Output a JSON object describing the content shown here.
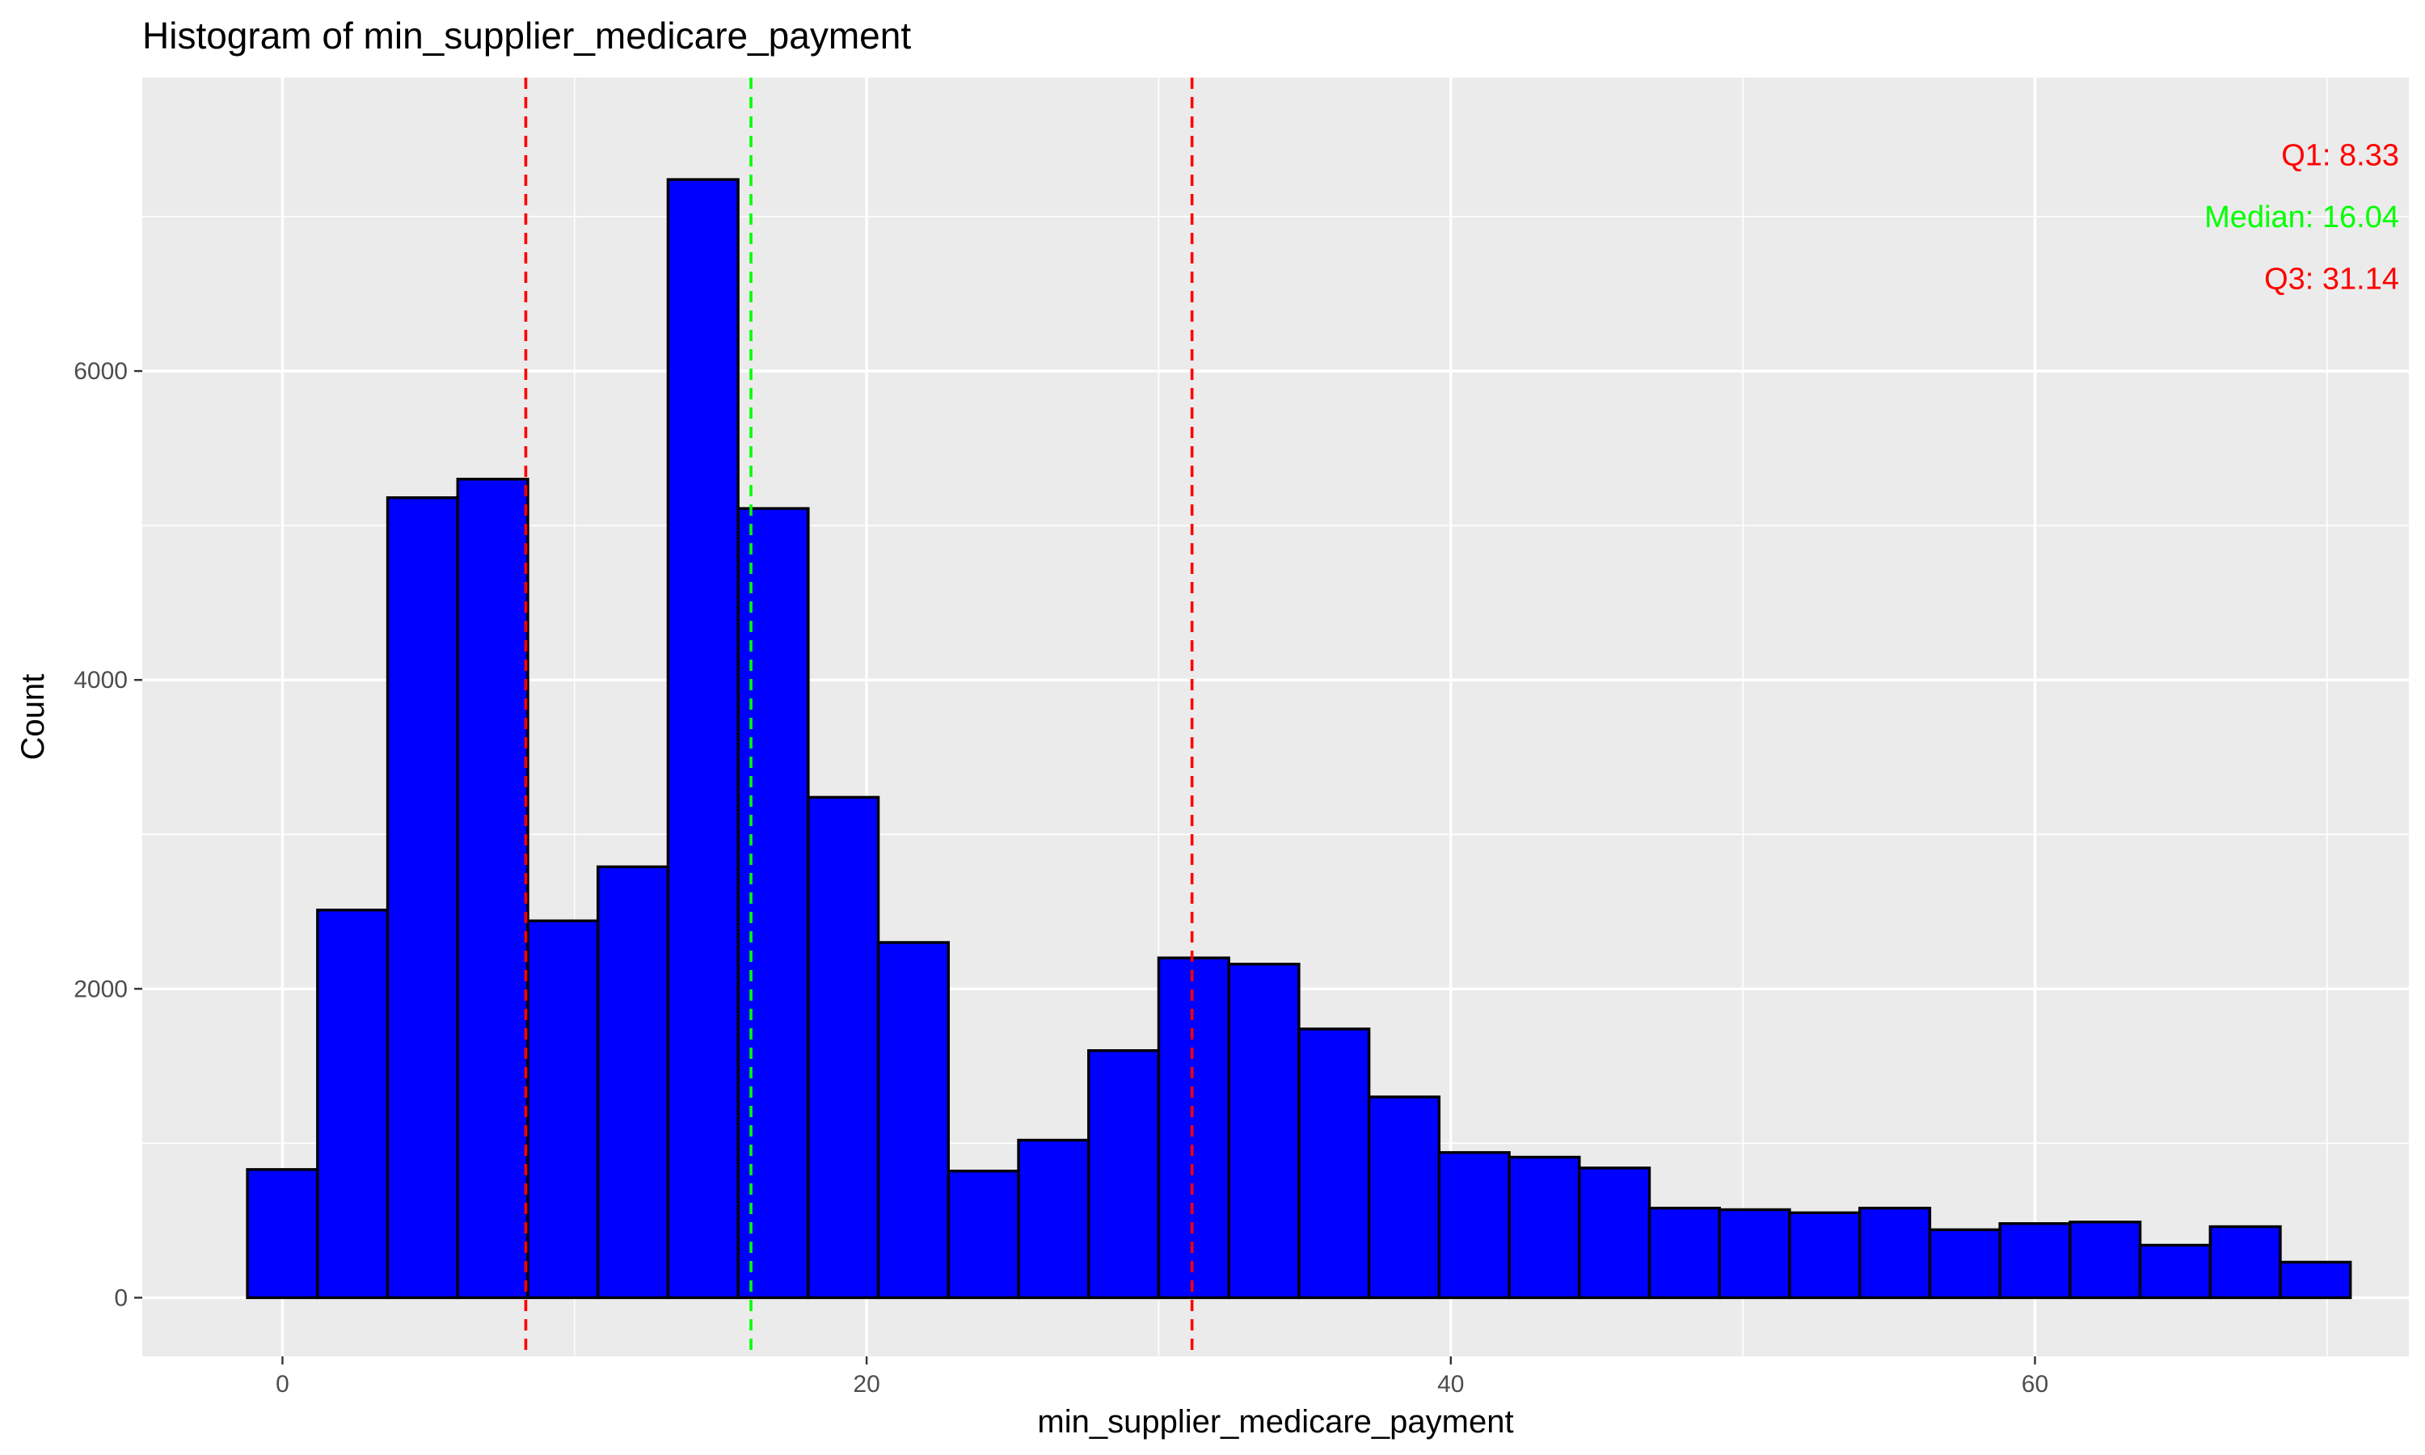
{
  "chart_data": {
    "type": "bar",
    "title": "Histogram of min_supplier_medicare_payment",
    "xlabel": "min_supplier_medicare_payment",
    "ylabel": "Count",
    "xlim": [
      -4.8,
      72.8
    ],
    "ylim": [
      -380,
      7900
    ],
    "x_ticks": [
      0,
      20,
      40,
      60
    ],
    "x_tick_labels": [
      "0",
      "20",
      "40",
      "60"
    ],
    "y_ticks": [
      0,
      2000,
      4000,
      6000
    ],
    "y_tick_labels": [
      "0",
      "2000",
      "4000",
      "6000"
    ],
    "grid": true,
    "colors": {
      "panel": "#ebebeb",
      "grid": "#ffffff",
      "bar_fill": "#0000ff",
      "bar_stroke": "#000000",
      "quartile_line": "#ff0000",
      "median_line": "#00ff00"
    },
    "bin_edges": [
      -1.2,
      1.2,
      3.6,
      6.0,
      8.4,
      10.8,
      13.2,
      15.6,
      18.0,
      20.4,
      22.8,
      25.2,
      27.6,
      30.0,
      32.4,
      34.8,
      37.2,
      39.6,
      42.0,
      44.4,
      46.8,
      49.2,
      51.6,
      54.0,
      56.4,
      58.8,
      61.2,
      63.6,
      66.0,
      68.4,
      70.8
    ],
    "counts": [
      830,
      2510,
      5180,
      5300,
      2440,
      2790,
      7240,
      5110,
      3240,
      2300,
      820,
      1020,
      1600,
      2200,
      2160,
      1740,
      1300,
      940,
      910,
      840,
      580,
      570,
      550,
      580,
      440,
      480,
      490,
      340,
      460,
      230
    ],
    "reference_lines": [
      {
        "label": "Q1: 8.33",
        "x": 8.33,
        "color": "#ff0000"
      },
      {
        "label": "Median: 16.04",
        "x": 16.04,
        "color": "#00ff00"
      },
      {
        "label": "Q3: 31.14",
        "x": 31.14,
        "color": "#ff0000"
      }
    ]
  }
}
